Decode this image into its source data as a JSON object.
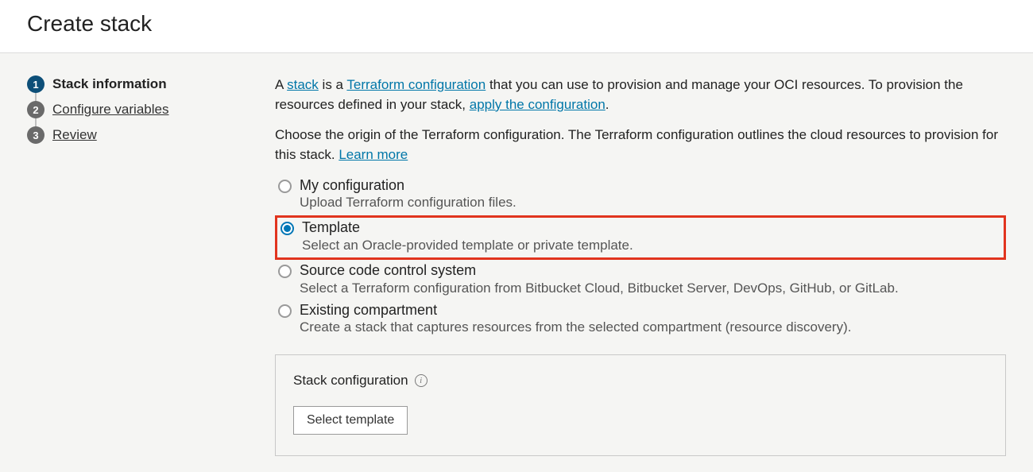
{
  "colors": {
    "page_bg": "#f5f5f3",
    "header_bg": "#ffffff",
    "divider": "#dcdcdc",
    "link": "#0076a8",
    "step_active_badge": "#0d4f78",
    "step_inactive_badge": "#6a6a6a",
    "highlight_border": "#e1341e",
    "radio_unchecked": "#9a9a9a",
    "radio_checked": "#0076b6"
  },
  "header": {
    "title": "Create stack"
  },
  "steps": [
    {
      "num": "1",
      "label": "Stack information",
      "active": true
    },
    {
      "num": "2",
      "label": "Configure variables",
      "active": false
    },
    {
      "num": "3",
      "label": "Review",
      "active": false
    }
  ],
  "intro": {
    "prefix": "A ",
    "link1": "stack",
    "mid1": " is a ",
    "link2": "Terraform configuration",
    "mid2": " that you can use to provision and manage your OCI resources. To provision the resources defined in your stack, ",
    "link3": "apply the configuration",
    "suffix": "."
  },
  "origin": {
    "text": "Choose the origin of the Terraform configuration. The Terraform configuration outlines the cloud resources to provision for this stack. ",
    "link": "Learn more"
  },
  "options": [
    {
      "title": "My configuration",
      "desc": "Upload Terraform configuration files.",
      "checked": false,
      "highlight": false
    },
    {
      "title": "Template",
      "desc": "Select an Oracle-provided template or private template.",
      "checked": true,
      "highlight": true
    },
    {
      "title": "Source code control system",
      "desc": "Select a Terraform configuration from Bitbucket Cloud, Bitbucket Server, DevOps, GitHub, or GitLab.",
      "checked": false,
      "highlight": false
    },
    {
      "title": "Existing compartment",
      "desc": "Create a stack that captures resources from the selected compartment (resource discovery).",
      "checked": false,
      "highlight": false
    }
  ],
  "config": {
    "heading": "Stack configuration",
    "button": "Select template"
  }
}
